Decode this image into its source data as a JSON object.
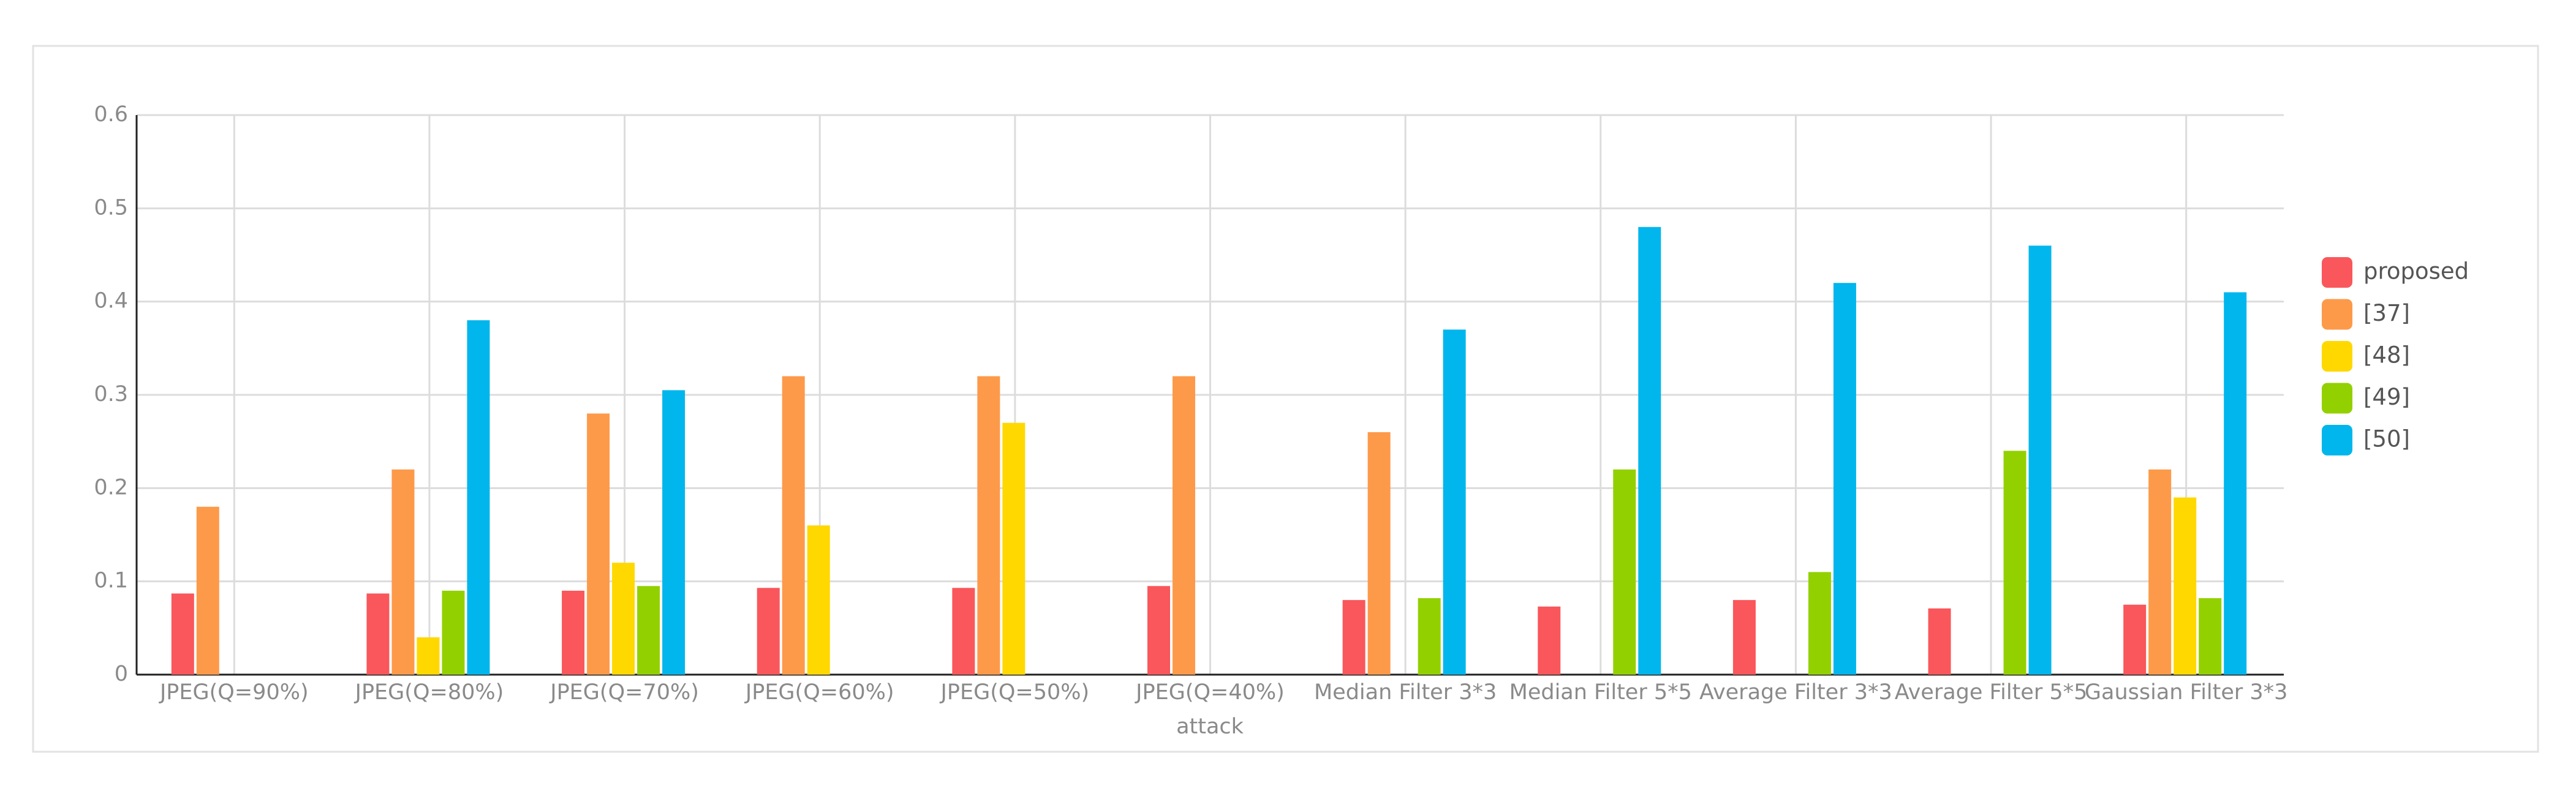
{
  "chart_data": {
    "type": "bar",
    "x_label": "attack",
    "categories": [
      "JPEG(Q=90%)",
      "JPEG(Q=80%)",
      "JPEG(Q=70%)",
      "JPEG(Q=60%)",
      "JPEG(Q=50%)",
      "JPEG(Q=40%)",
      "Median Filter 3*3",
      "Median Filter 5*5",
      "Average Filter 3*3",
      "Average Filter 5*5",
      "Gaussian Filter 3*3"
    ],
    "series": [
      {
        "name": "proposed",
        "color": "#f9575b",
        "values": [
          0.087,
          0.087,
          0.09,
          0.093,
          0.093,
          0.095,
          0.08,
          0.073,
          0.08,
          0.071,
          0.075
        ]
      },
      {
        "name": "[37]",
        "color": "#fd9a4a",
        "values": [
          0.18,
          0.22,
          0.28,
          0.32,
          0.32,
          0.32,
          0.26,
          null,
          null,
          null,
          0.22
        ]
      },
      {
        "name": "[48]",
        "color": "#ffd800",
        "values": [
          null,
          0.04,
          0.12,
          0.16,
          0.27,
          null,
          null,
          null,
          null,
          null,
          0.19
        ]
      },
      {
        "name": "[49]",
        "color": "#93d000",
        "values": [
          null,
          0.09,
          0.095,
          null,
          null,
          null,
          0.082,
          0.22,
          0.11,
          0.24,
          0.082
        ]
      },
      {
        "name": "[50]",
        "color": "#00b6ec",
        "values": [
          null,
          0.38,
          0.305,
          null,
          null,
          null,
          0.37,
          0.48,
          0.42,
          0.46,
          0.41
        ]
      }
    ],
    "ylim": [
      0,
      0.6
    ],
    "yticks": [
      0,
      0.1,
      0.2,
      0.3,
      0.4,
      0.5,
      0.6
    ],
    "grid": true,
    "legend": "right"
  }
}
